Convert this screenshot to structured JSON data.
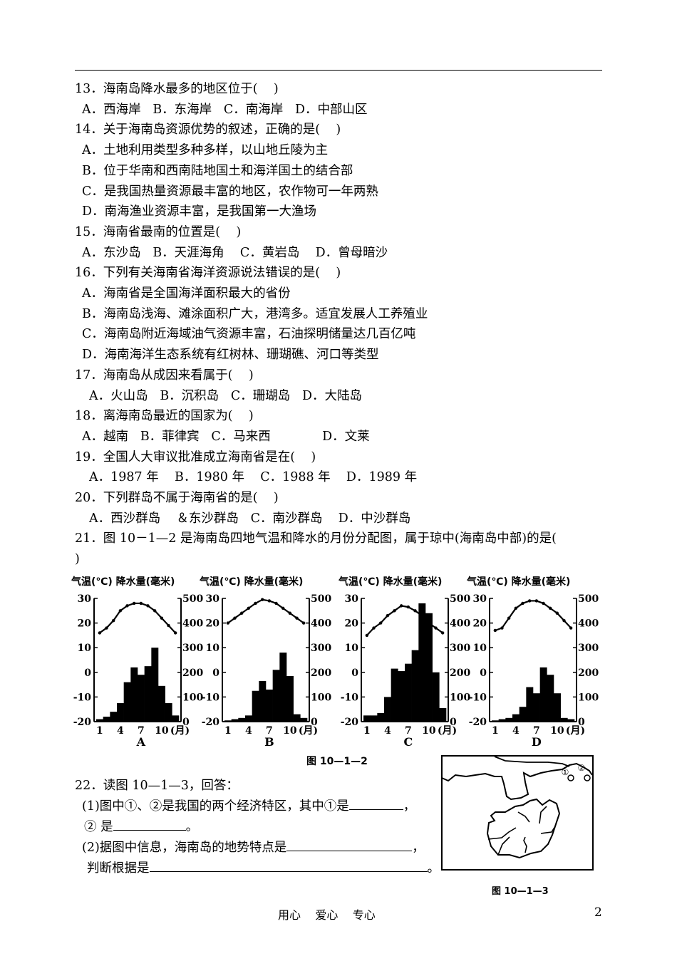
{
  "questions": [
    {
      "text": "13．海南岛降水最多的地区位于(    )",
      "indent": 0
    },
    {
      "text": "A．西海岸   B．东海岸   C．南海岸   D．中部山区",
      "indent": 1
    },
    {
      "text": "14．关于海南岛资源优势的叙述，正确的是(    )",
      "indent": 0
    },
    {
      "text": "A．土地利用类型多种多样，以山地丘陵为主",
      "indent": 1
    },
    {
      "text": "B．位于华南和西南陆地国土和海洋国土的结合部",
      "indent": 1
    },
    {
      "text": "C．是我国热量资源最丰富的地区，农作物可一年两熟",
      "indent": 1
    },
    {
      "text": "D．南海渔业资源丰富，是我国第一大渔场",
      "indent": 1
    },
    {
      "text": "15．海南省最南的位置是(    )",
      "indent": 0
    },
    {
      "text": "A．东沙岛   B．天涯海角    C．黄岩岛    D．曾母暗沙",
      "indent": 1
    },
    {
      "text": "16．下列有关海南省海洋资源说法错误的是(    )",
      "indent": 0
    },
    {
      "text": "A．海南省是全国海洋面积最大的省份",
      "indent": 1
    },
    {
      "text": "B．海南岛浅海、滩涂面积广大，港湾多。适宜发展人工养殖业",
      "indent": 1
    },
    {
      "text": "C．海南岛附近海域油气资源丰富，石油探明储量达几百亿吨",
      "indent": 1
    },
    {
      "text": "D．海南海洋生态系统有红树林、珊瑚礁、河口等类型",
      "indent": 1
    },
    {
      "text": "17．海南岛从成因来看属于(    )",
      "indent": 0
    },
    {
      "text": "A．火山岛   B．沉积岛   C．珊瑚岛   D．大陆岛",
      "indent": 2
    },
    {
      "text": "18．离海南岛最近的国家为(    )",
      "indent": 0
    },
    {
      "text": "A．越南   B．菲律宾   C．马来西             D．文莱",
      "indent": 1
    },
    {
      "text": "19．全国人大审议批准成立海南省是在(    )",
      "indent": 0
    },
    {
      "text": "A．1987 年    B．1980 年    C．1988 年    D．1989 年",
      "indent": 2
    },
    {
      "text": "20．下列群岛不属于海南省的是(    )",
      "indent": 0
    },
    {
      "text": "A．西沙群岛    ＆东沙群岛   C．南沙群岛    D．中沙群岛",
      "indent": 2
    },
    {
      "text": "21．图 10－1—2 是海南岛四地气温和降水的月份分配图，属于琼中(海南岛中部)的是(",
      "indent": 0
    },
    {
      "text": ")",
      "indent": 0
    }
  ],
  "chart_data": [
    {
      "type": "bar+line",
      "label": "A",
      "title": "气温(℃) 降水量(毫米)",
      "x_label": "(月)",
      "x_ticks": [
        "1",
        "4",
        "7",
        "10"
      ],
      "y_left": {
        "range": [
          -20,
          30
        ],
        "ticks": [
          30,
          20,
          10,
          0,
          -10,
          -20
        ]
      },
      "y_right": {
        "range": [
          0,
          500
        ],
        "ticks": [
          500,
          400,
          300,
          200,
          100,
          0
        ]
      },
      "months": [
        1,
        2,
        3,
        4,
        5,
        6,
        7,
        8,
        9,
        10,
        11,
        12
      ],
      "temperature": [
        16,
        18,
        21,
        25,
        27,
        28,
        28,
        27,
        25,
        22,
        19,
        16
      ],
      "precipitation": [
        10,
        20,
        40,
        75,
        160,
        220,
        190,
        225,
        300,
        145,
        75,
        25
      ]
    },
    {
      "type": "bar+line",
      "label": "B",
      "title": "气温(℃) 降水量(毫米)",
      "x_label": "(月)",
      "x_ticks": [
        "1",
        "4",
        "7",
        "10"
      ],
      "y_left": {
        "range": [
          -20,
          30
        ],
        "ticks": [
          30,
          20,
          10,
          0,
          -10,
          -20
        ]
      },
      "y_right": {
        "range": [
          0,
          500
        ],
        "ticks": [
          500,
          400,
          300,
          200,
          100,
          0
        ]
      },
      "months": [
        1,
        2,
        3,
        4,
        5,
        6,
        7,
        8,
        9,
        10,
        11,
        12
      ],
      "temperature": [
        20,
        22,
        24,
        26,
        28,
        29.5,
        29,
        28,
        26,
        24,
        22,
        20
      ],
      "precipitation": [
        5,
        10,
        15,
        25,
        125,
        165,
        130,
        210,
        280,
        185,
        30,
        15
      ]
    },
    {
      "type": "bar+line",
      "label": "C",
      "title": "气温(℃) 降水量(毫米)",
      "x_label": "(月)",
      "x_ticks": [
        "1",
        "4",
        "7",
        "10"
      ],
      "y_left": {
        "range": [
          -20,
          30
        ],
        "ticks": [
          30,
          20,
          10,
          0,
          -10,
          -20
        ]
      },
      "y_right": {
        "range": [
          0,
          500
        ],
        "ticks": [
          500,
          400,
          300,
          200,
          100,
          0
        ]
      },
      "months": [
        1,
        2,
        3,
        4,
        5,
        6,
        7,
        8,
        9,
        10,
        11,
        12
      ],
      "temperature": [
        15,
        18,
        20,
        23,
        25,
        27,
        26.5,
        25,
        23,
        20,
        18,
        16
      ],
      "precipitation": [
        25,
        25,
        35,
        100,
        215,
        205,
        235,
        290,
        480,
        440,
        200,
        55
      ]
    },
    {
      "type": "bar+line",
      "label": "D",
      "title": "气温(℃) 降水量(毫米)",
      "x_label": "(月)",
      "x_ticks": [
        "1",
        "4",
        "7",
        "10"
      ],
      "y_left": {
        "range": [
          -20,
          30
        ],
        "ticks": [
          30,
          20,
          10,
          0,
          -10,
          -20
        ]
      },
      "y_right": {
        "range": [
          0,
          500
        ],
        "ticks": [
          500,
          400,
          300,
          200,
          100,
          0
        ]
      },
      "months": [
        1,
        2,
        3,
        4,
        5,
        6,
        7,
        8,
        9,
        10,
        11,
        12
      ],
      "temperature": [
        17,
        18,
        22,
        26,
        28,
        29,
        29,
        28,
        26,
        24,
        21,
        18
      ],
      "precipitation": [
        5,
        10,
        15,
        30,
        60,
        140,
        115,
        220,
        190,
        115,
        15,
        10
      ]
    }
  ],
  "figure_caption_1": "图 10—1—2",
  "q22": {
    "title": "22．读图 10—1—3，回答：",
    "p1_a": "(1)图中①、②是我国的两个经济特区，其中①是",
    "p1_a_end": "，",
    "p1_b": "② 是",
    "p1_b_end": "。",
    "p2_a": "(2)据图中信息，海南岛的地势特点是",
    "p2_a_end": "，",
    "p2_b": "判断根据是",
    "p2_b_end": "。"
  },
  "map": {
    "marker_1": "①",
    "marker_2": "②",
    "caption": "图 10—1—3"
  },
  "footer": {
    "text": "用心    爱心    专心",
    "page_number": "2"
  }
}
